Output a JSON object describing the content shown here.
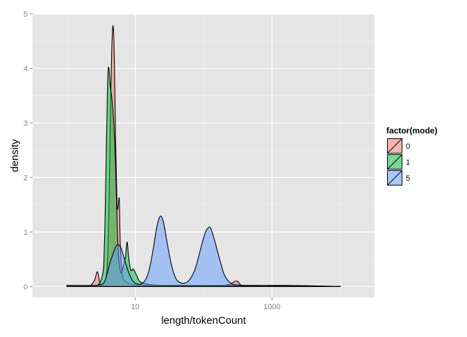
{
  "chart_data": {
    "type": "area",
    "xlabel": "length/tokenCount",
    "ylabel": "density",
    "x_scale": "log10",
    "xlim": [
      1,
      10000
    ],
    "ylim": [
      0,
      5
    ],
    "xticks": [
      10,
      1000
    ],
    "xtick_labels": [
      "10",
      "1000"
    ],
    "yticks": [
      0,
      1,
      2,
      3,
      4,
      5
    ],
    "ytick_labels": [
      "0",
      "1",
      "2",
      "3",
      "4",
      "5"
    ],
    "grid": true,
    "legend": {
      "title": "factor(mode)",
      "position": "right",
      "entries": [
        "0",
        "1",
        "5"
      ]
    },
    "series": [
      {
        "name": "0",
        "color": "#F8766D",
        "points": [
          [
            1,
            0.0
          ],
          [
            2.0,
            0.0
          ],
          [
            2.5,
            0.1
          ],
          [
            2.8,
            0.27
          ],
          [
            3.1,
            0.03
          ],
          [
            3.6,
            0.1
          ],
          [
            3.9,
            0.4
          ],
          [
            4.15,
            1.6
          ],
          [
            4.35,
            3.3
          ],
          [
            4.55,
            4.4
          ],
          [
            4.75,
            4.78
          ],
          [
            4.95,
            4.2
          ],
          [
            5.15,
            2.8
          ],
          [
            5.4,
            1.55
          ],
          [
            5.6,
            1.45
          ],
          [
            5.85,
            1.6
          ],
          [
            6.05,
            0.75
          ],
          [
            6.5,
            0.2
          ],
          [
            7.5,
            0.08
          ],
          [
            9.0,
            0.04
          ],
          [
            15,
            0.02
          ],
          [
            50,
            0.02
          ],
          [
            200,
            0.02
          ],
          [
            300,
            0.1
          ],
          [
            360,
            0.02
          ],
          [
            500,
            0.01
          ],
          [
            10000,
            0.0
          ]
        ]
      },
      {
        "name": "1",
        "color": "#00BA38",
        "points": [
          [
            1,
            0.0
          ],
          [
            2.5,
            0.0
          ],
          [
            3.3,
            0.2
          ],
          [
            3.55,
            0.8
          ],
          [
            3.75,
            2.3
          ],
          [
            3.95,
            3.75
          ],
          [
            4.1,
            4.02
          ],
          [
            4.3,
            3.7
          ],
          [
            4.6,
            3.4
          ],
          [
            4.85,
            3.0
          ],
          [
            5.15,
            2.25
          ],
          [
            5.45,
            1.1
          ],
          [
            5.75,
            0.5
          ],
          [
            6.2,
            0.25
          ],
          [
            6.6,
            0.35
          ],
          [
            7.2,
            0.55
          ],
          [
            7.6,
            0.82
          ],
          [
            8.0,
            0.55
          ],
          [
            8.6,
            0.3
          ],
          [
            9.4,
            0.32
          ],
          [
            10.5,
            0.2
          ],
          [
            12,
            0.08
          ],
          [
            18,
            0.03
          ],
          [
            40,
            0.02
          ],
          [
            200,
            0.02
          ],
          [
            10000,
            0.0
          ]
        ]
      },
      {
        "name": "5",
        "color": "#619CFF",
        "points": [
          [
            1,
            0.02
          ],
          [
            2.0,
            0.02
          ],
          [
            3.0,
            0.03
          ],
          [
            3.6,
            0.1
          ],
          [
            4.2,
            0.4
          ],
          [
            4.8,
            0.62
          ],
          [
            5.4,
            0.76
          ],
          [
            6.1,
            0.72
          ],
          [
            6.9,
            0.52
          ],
          [
            7.8,
            0.3
          ],
          [
            9.0,
            0.12
          ],
          [
            10.5,
            0.05
          ],
          [
            12.5,
            0.05
          ],
          [
            14.5,
            0.15
          ],
          [
            16.5,
            0.38
          ],
          [
            18.5,
            0.72
          ],
          [
            20.5,
            1.07
          ],
          [
            22.5,
            1.26
          ],
          [
            24.3,
            1.28
          ],
          [
            26.5,
            1.12
          ],
          [
            29.5,
            0.78
          ],
          [
            33.5,
            0.42
          ],
          [
            38.5,
            0.17
          ],
          [
            44,
            0.08
          ],
          [
            52,
            0.06
          ],
          [
            62,
            0.12
          ],
          [
            75,
            0.32
          ],
          [
            90,
            0.68
          ],
          [
            105,
            0.98
          ],
          [
            118,
            1.08
          ],
          [
            128,
            1.06
          ],
          [
            145,
            0.84
          ],
          [
            170,
            0.52
          ],
          [
            200,
            0.22
          ],
          [
            240,
            0.08
          ],
          [
            300,
            0.03
          ],
          [
            600,
            0.02
          ],
          [
            1500,
            0.02
          ],
          [
            5000,
            0.01
          ],
          [
            10000,
            0.0
          ]
        ]
      }
    ]
  }
}
